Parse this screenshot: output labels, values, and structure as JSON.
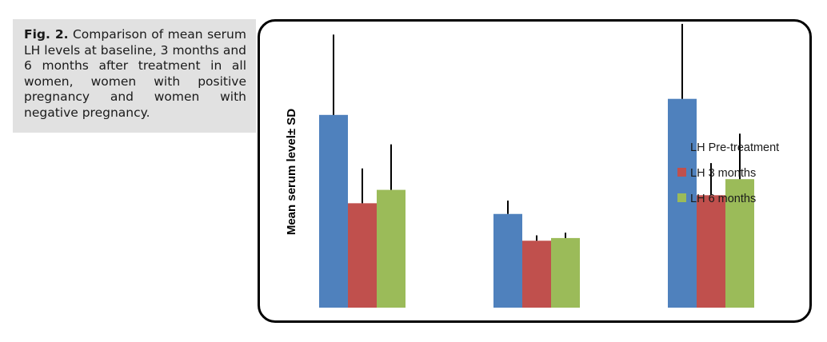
{
  "caption": {
    "label": "Fig. 2.",
    "text": " Comparison of mean serum LH levels at baseline, 3 months and 6 months after treatment in all women, women with positive pregnancy and women with negative pregnancy."
  },
  "chart_data": {
    "type": "bar",
    "title": "",
    "xlabel": "",
    "ylabel": "Mean serum level± SD",
    "categories": [
      "",
      "",
      ""
    ],
    "ylim": [
      0,
      100
    ],
    "grid": false,
    "legend_position": "right",
    "series": [
      {
        "name": "LH Pre-treatment",
        "color": "#4f81bd",
        "values": [
          72,
          35,
          78
        ],
        "errors": [
          30,
          5,
          28
        ]
      },
      {
        "name": "LH 3 months",
        "color": "#c0504d",
        "values": [
          39,
          25,
          42
        ],
        "errors": [
          13,
          2,
          12
        ]
      },
      {
        "name": "LH 6 months",
        "color": "#9bbb59",
        "values": [
          44,
          26,
          48
        ],
        "errors": [
          17,
          2,
          17
        ]
      }
    ]
  }
}
